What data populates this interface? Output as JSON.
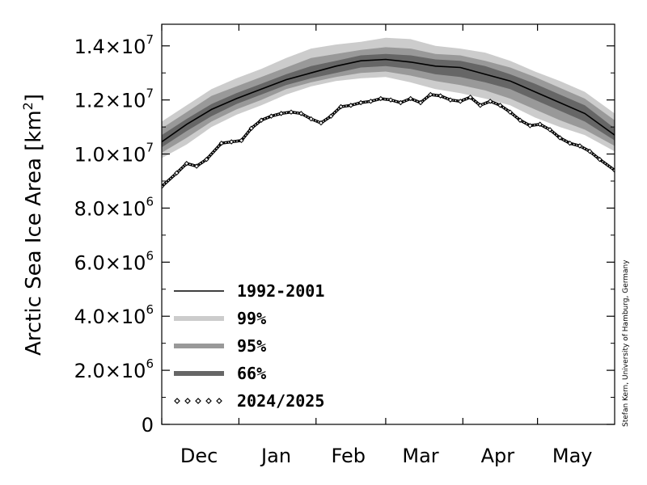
{
  "chart_data": {
    "type": "area",
    "ylabel": "Arctic Sea Ice Area [km",
    "ylabel_sup": "2",
    "ylabel_close": "]",
    "credit": "Stefan Kern, University of Hamburg, Germany",
    "ylim": [
      0,
      14800000
    ],
    "xlim": [
      0,
      182
    ],
    "y_ticks": [
      {
        "value": 0,
        "mant": "0",
        "exp": ""
      },
      {
        "value": 2000000,
        "mant": "2.0×10",
        "exp": "6"
      },
      {
        "value": 4000000,
        "mant": "4.0×10",
        "exp": "6"
      },
      {
        "value": 6000000,
        "mant": "6.0×10",
        "exp": "6"
      },
      {
        "value": 8000000,
        "mant": "8.0×10",
        "exp": "6"
      },
      {
        "value": 10000000,
        "mant": "1.0×10",
        "exp": "7"
      },
      {
        "value": 12000000,
        "mant": "1.2×10",
        "exp": "7"
      },
      {
        "value": 14000000,
        "mant": "1.4×10",
        "exp": "7"
      }
    ],
    "x_ticks": [
      {
        "label": "Dec",
        "value": 15
      },
      {
        "label": "Jan",
        "value": 46
      },
      {
        "label": "Feb",
        "value": 75
      },
      {
        "label": "Mar",
        "value": 104
      },
      {
        "label": "Apr",
        "value": 135
      },
      {
        "label": "May",
        "value": 165
      }
    ],
    "x": [
      0,
      10,
      20,
      30,
      40,
      50,
      60,
      70,
      80,
      90,
      100,
      110,
      120,
      130,
      140,
      150,
      160,
      170,
      182
    ],
    "series": [
      {
        "name": "1992-2001",
        "role": "mean",
        "values": [
          10450000,
          11100000,
          11650000,
          12050000,
          12400000,
          12750000,
          13000000,
          13250000,
          13450000,
          13500000,
          13400000,
          13250000,
          13200000,
          12950000,
          12700000,
          12300000,
          11900000,
          11500000,
          10700000
        ]
      },
      {
        "name": "99%",
        "role": "band",
        "color": "#cccccc",
        "low": [
          9850000,
          10350000,
          11000000,
          11450000,
          11800000,
          12200000,
          12500000,
          12700000,
          12800000,
          12850000,
          12650000,
          12400000,
          12250000,
          12050000,
          11800000,
          11350000,
          11000000,
          10700000,
          10100000
        ],
        "high": [
          11200000,
          11800000,
          12400000,
          12800000,
          13150000,
          13550000,
          13900000,
          14050000,
          14150000,
          14300000,
          14250000,
          14000000,
          13900000,
          13750000,
          13450000,
          13050000,
          12700000,
          12300000,
          11500000
        ]
      },
      {
        "name": "95%",
        "role": "band",
        "color": "#999999",
        "low": [
          10050000,
          10600000,
          11200000,
          11650000,
          12000000,
          12400000,
          12650000,
          12850000,
          13000000,
          13050000,
          12900000,
          12700000,
          12550000,
          12350000,
          12050000,
          11650000,
          11250000,
          10900000,
          10300000
        ],
        "high": [
          10950000,
          11550000,
          12150000,
          12500000,
          12850000,
          13200000,
          13550000,
          13700000,
          13850000,
          13950000,
          13900000,
          13700000,
          13650000,
          13450000,
          13200000,
          12850000,
          12450000,
          12050000,
          11250000
        ]
      },
      {
        "name": "66%",
        "role": "band",
        "color": "#666666",
        "low": [
          10250000,
          10850000,
          11400000,
          11850000,
          12200000,
          12550000,
          12800000,
          13000000,
          13200000,
          13250000,
          13150000,
          12950000,
          12850000,
          12650000,
          12400000,
          12000000,
          11600000,
          11200000,
          10500000
        ],
        "high": [
          10700000,
          11300000,
          11850000,
          12250000,
          12600000,
          12950000,
          13250000,
          13450000,
          13650000,
          13700000,
          13650000,
          13500000,
          13450000,
          13250000,
          12950000,
          12600000,
          12200000,
          11800000,
          10950000
        ]
      },
      {
        "name": "2024/2025",
        "role": "current",
        "x": [
          0,
          6,
          10,
          14,
          18,
          24,
          28,
          32,
          36,
          40,
          44,
          48,
          52,
          56,
          60,
          64,
          68,
          72,
          76,
          80,
          84,
          88,
          92,
          96,
          100,
          104,
          108,
          112,
          116,
          120,
          124,
          128,
          132,
          136,
          140,
          144,
          148,
          152,
          156,
          160,
          164,
          168,
          172,
          176,
          182
        ],
        "values": [
          8800000,
          9300000,
          9650000,
          9550000,
          9800000,
          10400000,
          10450000,
          10500000,
          10950000,
          11250000,
          11400000,
          11500000,
          11550000,
          11500000,
          11300000,
          11150000,
          11400000,
          11750000,
          11800000,
          11900000,
          11950000,
          12050000,
          12000000,
          11900000,
          12050000,
          11900000,
          12200000,
          12150000,
          12000000,
          11950000,
          12100000,
          11800000,
          11950000,
          11800000,
          11550000,
          11250000,
          11050000,
          11100000,
          10900000,
          10600000,
          10400000,
          10300000,
          10100000,
          9800000,
          9400000
        ]
      }
    ],
    "legend": {
      "position": "bottom-left",
      "entries": [
        {
          "label": "1992-2001",
          "style": "line"
        },
        {
          "label": "99%",
          "style": "band99"
        },
        {
          "label": "95%",
          "style": "band95"
        },
        {
          "label": "66%",
          "style": "band66"
        },
        {
          "label": "2024/2025",
          "style": "diamonds"
        }
      ]
    }
  }
}
